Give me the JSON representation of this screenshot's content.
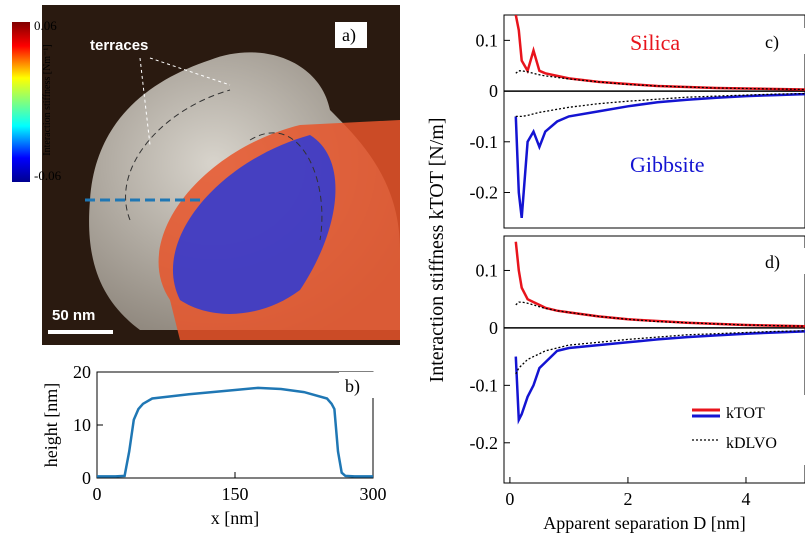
{
  "panel_a": {
    "label": "a)",
    "annotation": "terraces",
    "scale_bar": "50 nm",
    "colorbar": {
      "title": "Interaction stiffness [Nm⁻¹]",
      "max": 0.06,
      "min": -0.06
    }
  },
  "shared_ylabel": "Interaction stiffness kTOT [N/m]",
  "chart_data": [
    {
      "type": "line",
      "label": "b)",
      "xlabel": "x [nm]",
      "ylabel": "height [nm]",
      "x": [
        0,
        10,
        20,
        30,
        35,
        40,
        45,
        50,
        60,
        80,
        100,
        125,
        150,
        175,
        200,
        225,
        250,
        255,
        258,
        262,
        266,
        270,
        280,
        290,
        300
      ],
      "series": [
        {
          "color": "#1f77b4",
          "values": [
            0.3,
            0.3,
            0.3,
            0.4,
            5,
            11,
            13,
            14,
            15,
            15.4,
            15.8,
            16.2,
            16.6,
            17,
            16.8,
            16.2,
            15,
            14,
            13,
            5,
            1,
            0.4,
            0.3,
            0.3,
            0.3
          ]
        }
      ],
      "xlim": [
        0,
        300
      ],
      "ylim": [
        0,
        20
      ],
      "xticks": [
        0,
        150,
        300
      ],
      "yticks": [
        0,
        10,
        20
      ]
    },
    {
      "type": "line",
      "label": "c)",
      "x": [
        0.1,
        0.15,
        0.2,
        0.3,
        0.4,
        0.5,
        0.6,
        0.8,
        1,
        1.5,
        2,
        2.5,
        3,
        3.5,
        4,
        4.5,
        5
      ],
      "series": [
        {
          "color": "#e8141c",
          "style": "solid",
          "values": [
            0.15,
            0.12,
            0.06,
            0.04,
            0.08,
            0.04,
            0.035,
            0.03,
            0.025,
            0.018,
            0.014,
            0.01,
            0.008,
            0.006,
            0.005,
            0.004,
            0.003
          ]
        },
        {
          "color": "#1414d2",
          "style": "solid",
          "values": [
            -0.05,
            -0.2,
            -0.25,
            -0.1,
            -0.08,
            -0.11,
            -0.08,
            -0.06,
            -0.05,
            -0.04,
            -0.03,
            -0.022,
            -0.017,
            -0.013,
            -0.01,
            -0.008,
            -0.006
          ]
        },
        {
          "color": "#000000",
          "style": "dotted",
          "values": [
            0.035,
            0.04,
            0.04,
            0.038,
            0.035,
            0.032,
            0.03,
            0.027,
            0.024,
            0.018,
            0.013,
            0.01,
            0.008,
            0.006,
            0.005,
            0.004,
            0.003
          ]
        },
        {
          "color": "#000000",
          "style": "dotted",
          "values": [
            -0.05,
            -0.05,
            -0.05,
            -0.048,
            -0.045,
            -0.042,
            -0.04,
            -0.036,
            -0.032,
            -0.025,
            -0.02,
            -0.016,
            -0.012,
            -0.01,
            -0.008,
            -0.006,
            -0.005
          ]
        }
      ],
      "annotations": [
        {
          "text": "Silica",
          "color": "#e8141c"
        },
        {
          "text": "Gibbsite",
          "color": "#1414d2"
        }
      ],
      "xlim": [
        -0.1,
        5.0
      ],
      "ylim": [
        -0.27,
        0.15
      ],
      "yticks": [
        0.1,
        0,
        -0.1,
        -0.2
      ]
    },
    {
      "type": "line",
      "label": "d)",
      "xlabel": "Apparent separation D [nm]",
      "x": [
        0.1,
        0.15,
        0.2,
        0.3,
        0.4,
        0.5,
        0.6,
        0.8,
        1,
        1.5,
        2,
        2.5,
        3,
        3.5,
        4,
        4.5,
        5
      ],
      "series": [
        {
          "color": "#e8141c",
          "style": "solid",
          "values": [
            0.15,
            0.1,
            0.07,
            0.05,
            0.045,
            0.04,
            0.035,
            0.03,
            0.027,
            0.02,
            0.015,
            0.012,
            0.009,
            0.007,
            0.005,
            0.004,
            0.003
          ]
        },
        {
          "color": "#1414d2",
          "style": "solid",
          "values": [
            -0.05,
            -0.16,
            -0.15,
            -0.12,
            -0.1,
            -0.07,
            -0.06,
            -0.04,
            -0.035,
            -0.03,
            -0.025,
            -0.02,
            -0.016,
            -0.013,
            -0.01,
            -0.008,
            -0.006
          ]
        },
        {
          "color": "#000000",
          "style": "dotted",
          "values": [
            0.04,
            0.045,
            0.045,
            0.043,
            0.04,
            0.037,
            0.034,
            0.03,
            0.027,
            0.02,
            0.015,
            0.011,
            0.009,
            0.007,
            0.005,
            0.004,
            0.003
          ]
        },
        {
          "color": "#000000",
          "style": "dotted",
          "values": [
            -0.08,
            -0.07,
            -0.065,
            -0.055,
            -0.05,
            -0.045,
            -0.04,
            -0.035,
            -0.03,
            -0.025,
            -0.02,
            -0.016,
            -0.012,
            -0.01,
            -0.008,
            -0.006,
            -0.005
          ]
        }
      ],
      "legend": [
        {
          "label": "kTOT",
          "colors": [
            "#e8141c",
            "#1414d2"
          ],
          "style": "solid"
        },
        {
          "label": "kDLVO",
          "colors": [
            "#000000"
          ],
          "style": "dotted"
        }
      ],
      "xlim": [
        -0.1,
        5.0
      ],
      "ylim": [
        -0.27,
        0.16
      ],
      "xticks": [
        0,
        2,
        4
      ],
      "yticks": [
        0.1,
        0,
        -0.1,
        -0.2
      ]
    }
  ]
}
